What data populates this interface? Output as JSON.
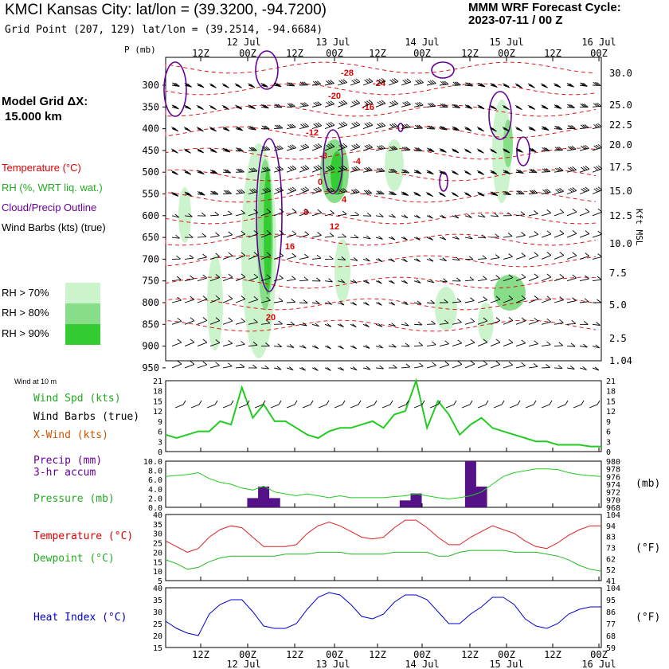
{
  "header": {
    "title": "KMCI Kansas City:  lat/lon = (39.3200, -94.7200)",
    "cycle_line1": "MMM WRF Forecast Cycle:",
    "cycle_line2": "2023-07-11 / 00  Z",
    "grid_point": "Grid Point (207, 129) lat/lon = (39.2514, -94.6684)",
    "model_grid_line1": "Model Grid ΔX:",
    "model_grid_line2": "15.000 km"
  },
  "upper_legend": {
    "temperature": "Temperature (°C)",
    "rh": "RH (%, WRT liq. wat.)",
    "cloud": "Cloud/Precip Outline",
    "barbs": "Wind Barbs (kts) (true)",
    "rh70": "RH > 70%",
    "rh80": "RH > 80%",
    "rh90": "RH > 90%"
  },
  "colors": {
    "temperature": "#dd0000",
    "rh": "#22bb22",
    "cloud": "#660099",
    "rh70": "#ccf4cc",
    "rh80": "#88dd88",
    "rh90": "#33cc33",
    "heat_index": "#0000cc",
    "xwind": "#cc5500"
  },
  "time_axis": {
    "top_dates": [
      "12 Jul",
      "13 Jul",
      "14 Jul",
      "15 Jul",
      "16 Jul"
    ],
    "top_hours": [
      "12Z",
      "00Z",
      "12Z",
      "00Z",
      "12Z",
      "00Z",
      "12Z",
      "00Z",
      "12Z",
      "00Z"
    ],
    "bottom_hours": [
      "12Z",
      "00Z",
      "12Z",
      "00Z",
      "12Z",
      "00Z",
      "12Z",
      "00Z",
      "12Z",
      "00Z"
    ],
    "bottom_dates": [
      "12 Jul",
      "13 Jul",
      "14 Jul",
      "15 Jul",
      "16 Jul"
    ]
  },
  "pressure_axis": {
    "title": "P (mb)",
    "levels": [
      "300",
      "350",
      "400",
      "450",
      "500",
      "550",
      "600",
      "650",
      "700",
      "750",
      "800",
      "850",
      "900",
      "950"
    ]
  },
  "height_axis": {
    "title": "Kft MSL",
    "levels": [
      "30.0",
      "25.0",
      "22.5",
      "20.0",
      "17.5",
      "15.0",
      "12.5",
      "10.0",
      "7.5",
      "5.0",
      "2.5",
      "1.04"
    ]
  },
  "temp_contour_labels": [
    "-28",
    "-24",
    "-20",
    "-16",
    "-12",
    "-8",
    "-4",
    "0",
    "4",
    "8",
    "12",
    "16",
    "20"
  ],
  "wind_panel": {
    "header": "Wind at 10 m",
    "spd": "Wind Spd (kts)",
    "barbs": "Wind Barbs (true)",
    "xwind": "X-Wind (kts)",
    "ticks": [
      "21",
      "18",
      "15",
      "12",
      "9",
      "6",
      "3",
      "0"
    ]
  },
  "precip_panel": {
    "precip": "Precip (mm)",
    "accum": "3-hr accum",
    "pressure": "Pressure (mb)",
    "left_ticks": [
      "10.0",
      "8.0",
      "6.0",
      "4.0",
      "2.0",
      "0.0"
    ],
    "right_ticks": [
      "980",
      "978",
      "976",
      "974",
      "972",
      "970",
      "968"
    ],
    "right_unit": "(mb)"
  },
  "temp_panel": {
    "temperature": "Temperature (°C)",
    "dewpoint": "Dewpoint (°C)",
    "left_ticks": [
      "40",
      "35",
      "30",
      "25",
      "20",
      "15",
      "10",
      "5"
    ],
    "right_ticks": [
      "104",
      "94",
      "83",
      "73",
      "62",
      "52",
      "41"
    ],
    "right_unit": "(°F)"
  },
  "heat_panel": {
    "heat_index": "Heat Index (°C)",
    "left_ticks": [
      "40",
      "35",
      "30",
      "25",
      "20",
      "15"
    ],
    "right_ticks": [
      "104",
      "95",
      "86",
      "77",
      "68",
      "59"
    ],
    "right_unit": "(°F)"
  },
  "chart_data": [
    {
      "type": "line",
      "title": "Wind at 10 m",
      "x_hours": [
        0,
        3,
        6,
        9,
        12,
        15,
        18,
        21,
        24,
        27,
        30,
        33,
        36,
        39,
        42,
        45,
        48,
        51,
        54,
        57,
        60,
        63,
        66,
        69,
        72,
        75,
        78,
        81,
        84,
        87,
        90,
        93,
        96,
        99,
        102,
        105,
        108,
        111,
        114,
        117,
        120
      ],
      "series": [
        {
          "name": "Wind Spd (kts)",
          "values": [
            5,
            4,
            5,
            6,
            6,
            9,
            8,
            19,
            10,
            14,
            9,
            9,
            7,
            5,
            4,
            6,
            7,
            7,
            8,
            9,
            7,
            11,
            12,
            21,
            7,
            15,
            11,
            5,
            8,
            10,
            7,
            6,
            5,
            4,
            3,
            3,
            2,
            2,
            2,
            1.5,
            1.5
          ]
        }
      ],
      "ylim": [
        0,
        21
      ]
    },
    {
      "type": "line",
      "title": "Pressure (mb) / Precip (mm) 3-hr accum",
      "x_hours": [
        0,
        3,
        6,
        9,
        12,
        15,
        18,
        21,
        24,
        27,
        30,
        33,
        36,
        39,
        42,
        45,
        48,
        51,
        54,
        57,
        60,
        63,
        66,
        69,
        72,
        75,
        78,
        81,
        84,
        87,
        90,
        93,
        96,
        99,
        102,
        105,
        108,
        111,
        114,
        117,
        120
      ],
      "series": [
        {
          "name": "Pressure (mb)",
          "values": [
            976,
            976.3,
            976.5,
            977,
            975.5,
            974.5,
            974,
            973,
            972.5,
            973.5,
            972,
            971.5,
            971,
            971.5,
            971,
            970.5,
            971,
            970.5,
            970.5,
            970.5,
            970.5,
            970.8,
            971,
            971.5,
            971,
            970.5,
            970.2,
            970.5,
            971,
            972,
            974,
            976,
            977,
            977.5,
            978,
            978,
            977.8,
            977,
            976.5,
            976.2,
            976
          ]
        }
      ],
      "bars": {
        "name": "Precip (mm)",
        "x_hours": [
          24,
          27,
          30,
          33,
          66,
          69,
          84,
          87
        ],
        "values": [
          2.0,
          4.5,
          2.0,
          0,
          1.5,
          3.0,
          10.0,
          4.5
        ]
      },
      "ylim_precip": [
        0,
        10
      ],
      "ylim_pressure": [
        968,
        980
      ]
    },
    {
      "type": "line",
      "title": "Temperature / Dewpoint (°C)",
      "x_hours": [
        0,
        3,
        6,
        9,
        12,
        15,
        18,
        21,
        24,
        27,
        30,
        33,
        36,
        39,
        42,
        45,
        48,
        51,
        54,
        57,
        60,
        63,
        66,
        69,
        72,
        75,
        78,
        81,
        84,
        87,
        90,
        93,
        96,
        99,
        102,
        105,
        108,
        111,
        114,
        117,
        120
      ],
      "series": [
        {
          "name": "Temperature (°C)",
          "values": [
            26,
            23,
            20,
            22,
            28,
            32,
            34,
            33,
            28,
            23,
            23,
            23,
            24,
            30,
            34,
            36,
            34,
            31,
            28,
            27,
            28,
            33,
            37,
            37,
            33,
            28,
            24,
            24,
            28,
            31,
            34,
            32,
            30,
            26,
            23,
            22,
            25,
            29,
            32,
            34,
            34
          ]
        },
        {
          "name": "Dewpoint (°C)",
          "values": [
            16,
            14,
            11,
            12,
            15,
            17,
            18,
            18,
            18,
            18,
            18,
            19,
            19,
            19,
            20,
            20,
            20,
            19,
            19,
            19,
            19,
            20,
            20,
            20,
            20,
            18,
            18,
            20,
            21,
            21,
            21,
            21,
            20,
            20,
            20,
            19,
            18,
            16,
            13,
            11,
            10
          ]
        }
      ],
      "ylim": [
        5,
        40
      ]
    },
    {
      "type": "line",
      "title": "Heat Index (°C)",
      "x_hours": [
        0,
        3,
        6,
        9,
        12,
        15,
        18,
        21,
        24,
        27,
        30,
        33,
        36,
        39,
        42,
        45,
        48,
        51,
        54,
        57,
        60,
        63,
        66,
        69,
        72,
        75,
        78,
        81,
        84,
        87,
        90,
        93,
        96,
        99,
        102,
        105,
        108,
        111,
        114,
        117,
        120
      ],
      "series": [
        {
          "name": "Heat Index (°C)",
          "values": [
            26,
            23,
            21,
            20,
            29,
            33,
            35,
            35,
            30,
            24,
            23,
            23,
            25,
            31,
            36,
            38,
            37,
            33,
            28,
            27,
            29,
            34,
            37,
            37,
            35,
            30,
            25,
            25,
            29,
            32,
            36,
            36,
            33,
            27,
            24,
            23,
            25,
            29,
            31,
            32,
            32
          ]
        }
      ],
      "ylim": [
        15,
        40
      ]
    }
  ]
}
